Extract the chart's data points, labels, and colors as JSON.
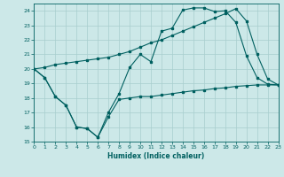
{
  "xlabel": "Humidex (Indice chaleur)",
  "background_color": "#cce8e8",
  "grid_color": "#a8cece",
  "line_color": "#006060",
  "xlim": [
    0,
    23
  ],
  "ylim": [
    15,
    24.5
  ],
  "yticks": [
    15,
    16,
    17,
    18,
    19,
    20,
    21,
    22,
    23,
    24
  ],
  "xticks": [
    0,
    1,
    2,
    3,
    4,
    5,
    6,
    7,
    8,
    9,
    10,
    11,
    12,
    13,
    14,
    15,
    16,
    17,
    18,
    19,
    20,
    21,
    22,
    23
  ],
  "line1_x": [
    0,
    1,
    2,
    3,
    4,
    5,
    6,
    7,
    8,
    9,
    10,
    11,
    12,
    13,
    14,
    15,
    16,
    17,
    18,
    19,
    20,
    21,
    22,
    23
  ],
  "line1_y": [
    20.0,
    19.4,
    18.1,
    17.5,
    16.0,
    15.9,
    15.3,
    16.7,
    17.9,
    18.0,
    18.1,
    18.1,
    18.2,
    18.3,
    18.4,
    18.5,
    18.55,
    18.65,
    18.7,
    18.8,
    18.85,
    18.9,
    18.9,
    18.9
  ],
  "line2_x": [
    0,
    1,
    2,
    3,
    4,
    5,
    6,
    7,
    8,
    9,
    10,
    11,
    12,
    13,
    14,
    15,
    16,
    17,
    18,
    19,
    20,
    21,
    22,
    23
  ],
  "line2_y": [
    20.0,
    19.4,
    18.1,
    17.5,
    16.0,
    15.9,
    15.3,
    17.0,
    18.3,
    20.1,
    21.0,
    20.5,
    22.6,
    22.8,
    24.05,
    24.2,
    24.2,
    23.95,
    24.0,
    23.2,
    20.9,
    19.4,
    18.95,
    18.9
  ],
  "line3_x": [
    0,
    1,
    2,
    3,
    4,
    5,
    6,
    7,
    8,
    9,
    10,
    11,
    12,
    13,
    14,
    15,
    16,
    17,
    18,
    19,
    20,
    21,
    22,
    23
  ],
  "line3_y": [
    20.0,
    20.1,
    20.3,
    20.4,
    20.5,
    20.6,
    20.7,
    20.8,
    21.0,
    21.2,
    21.5,
    21.8,
    22.0,
    22.3,
    22.6,
    22.9,
    23.2,
    23.5,
    23.8,
    24.15,
    23.3,
    21.0,
    19.3,
    18.9
  ]
}
